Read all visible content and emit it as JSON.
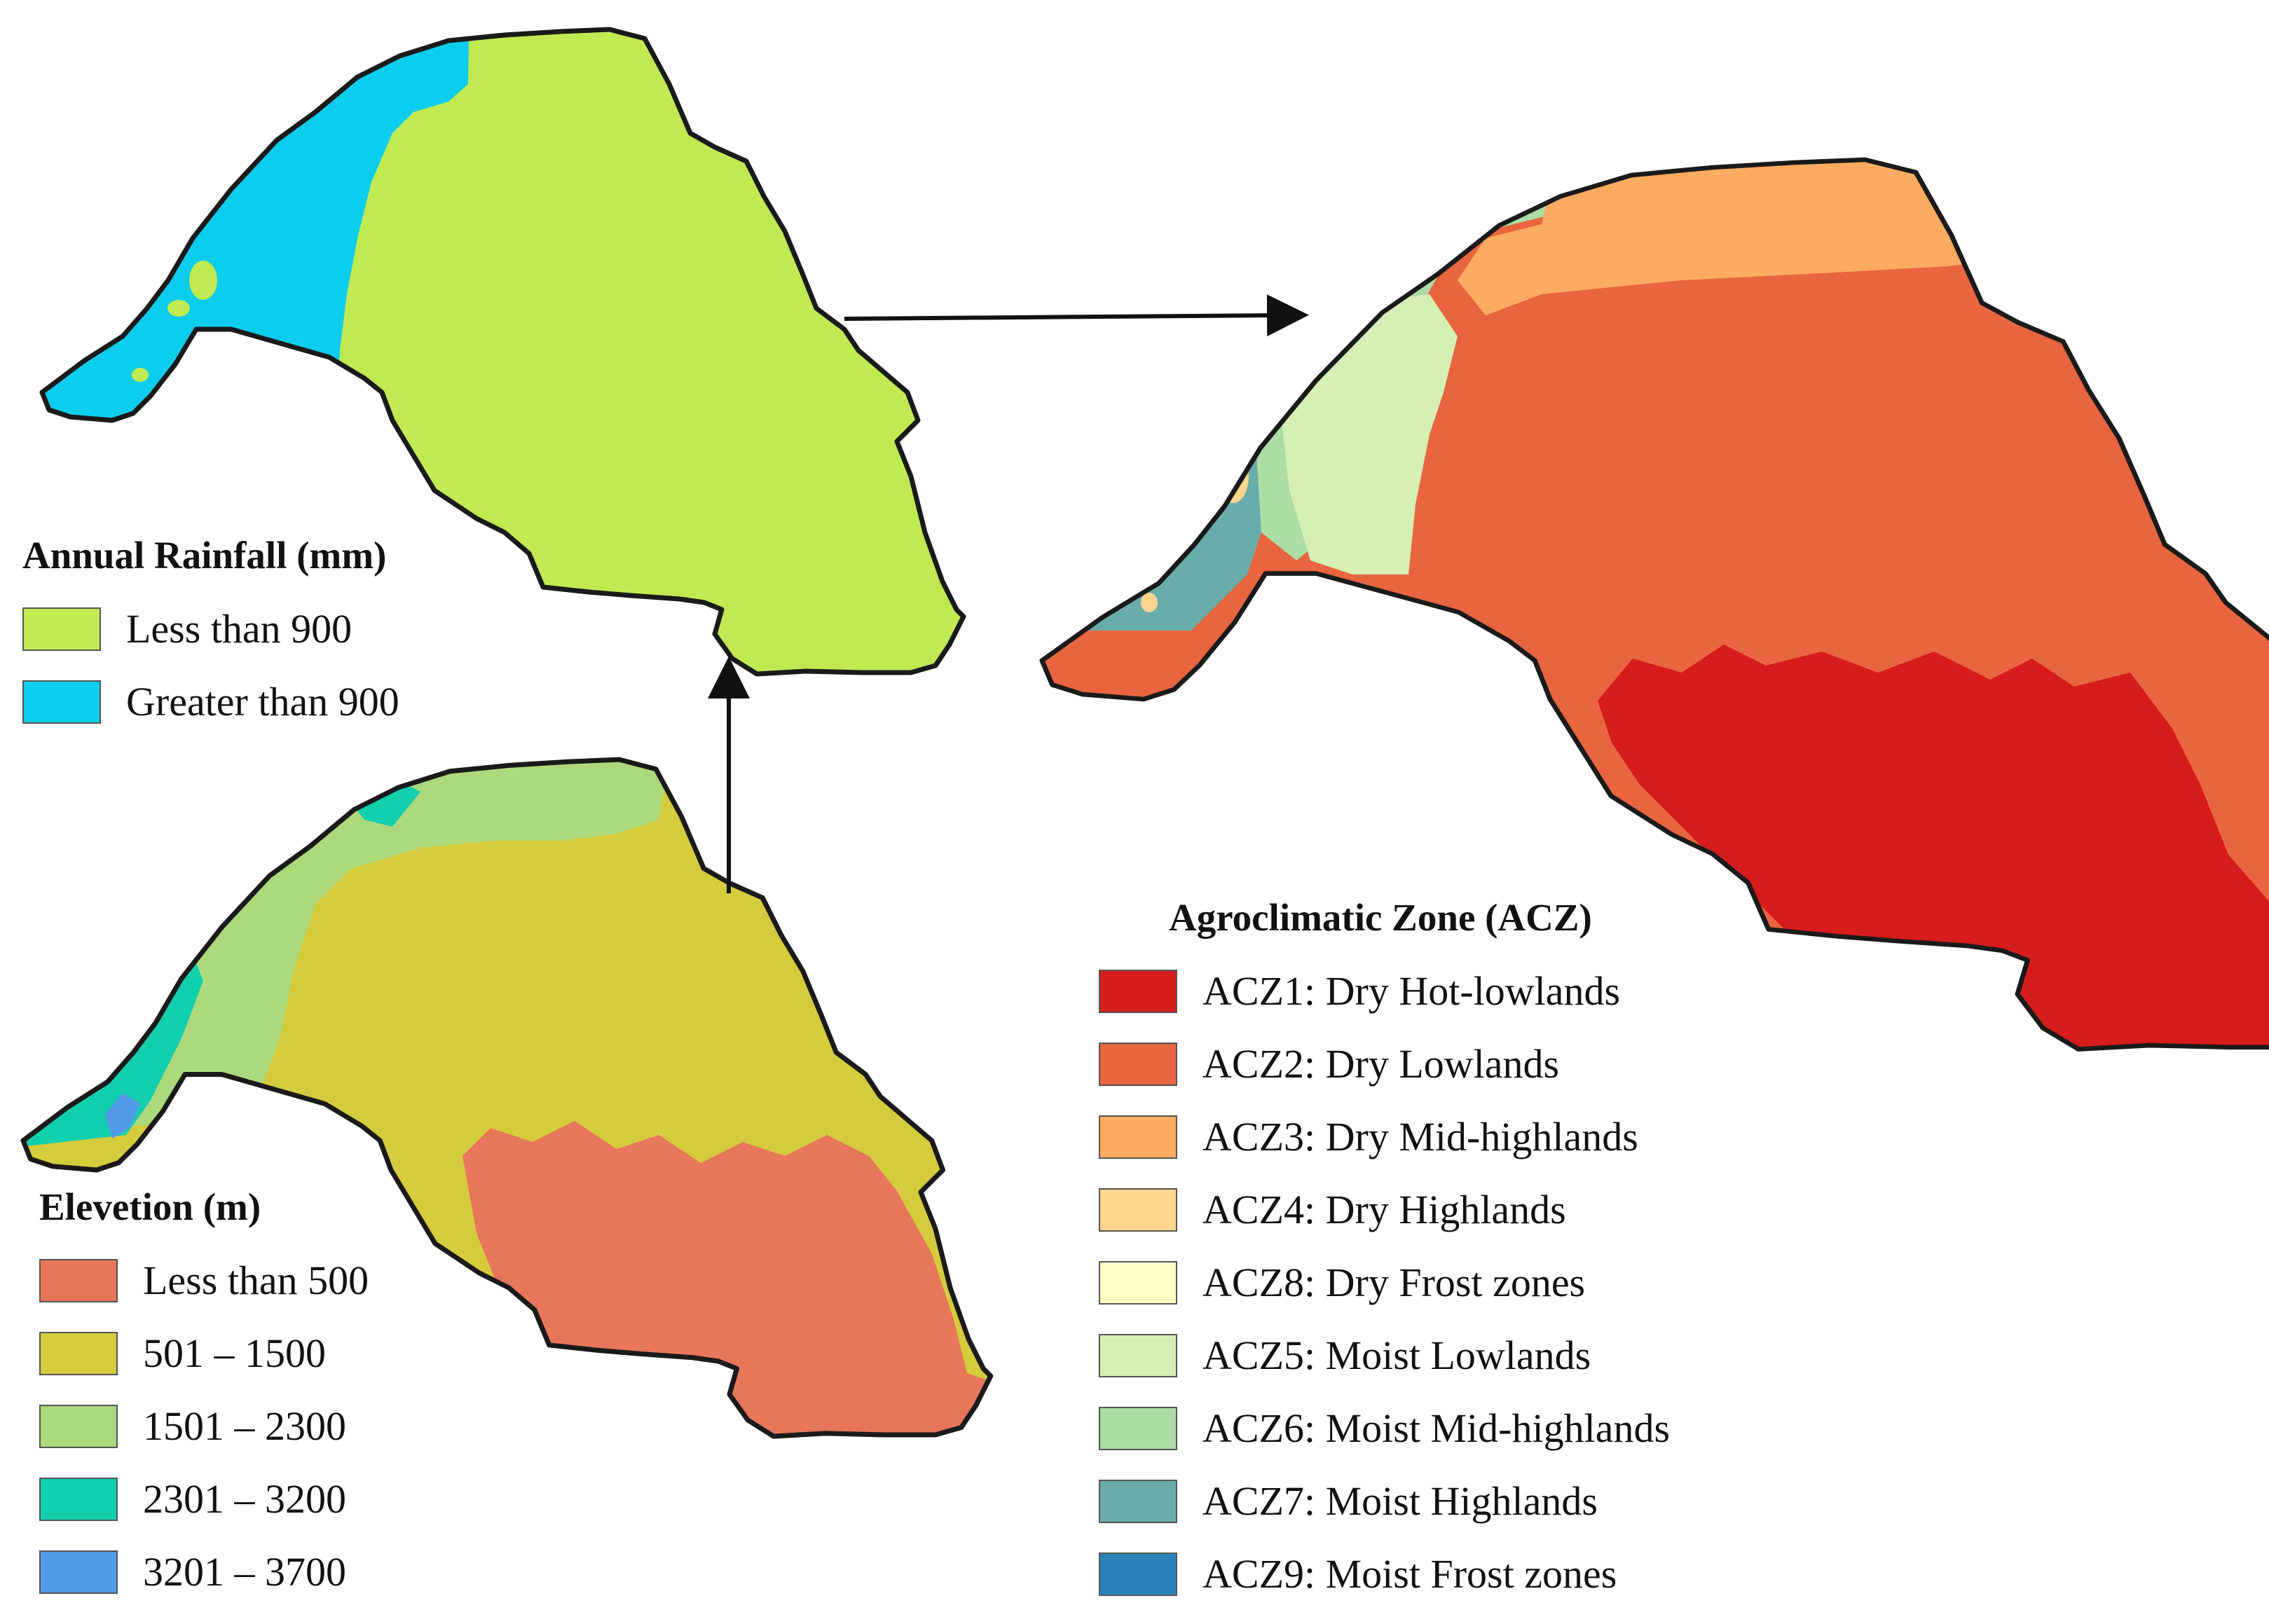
{
  "rainfall_legend": {
    "title": "Annual Rainfall (mm)",
    "items": [
      {
        "label": "Less than 900",
        "color": "#c0ea52"
      },
      {
        "label": "Greater than 900",
        "color": "#0ccdee"
      }
    ]
  },
  "elevation_legend": {
    "title": "Elevetion (m)",
    "items": [
      {
        "label": "Less than 500",
        "color": "#e8765a"
      },
      {
        "label": "501 – 1500",
        "color": "#d4cc3c"
      },
      {
        "label": "1501 – 2300",
        "color": "#acd97c"
      },
      {
        "label": "2301 – 3200",
        "color": "#12cfae"
      },
      {
        "label": "3201 – 3700",
        "color": "#559ae6"
      }
    ]
  },
  "acz_legend": {
    "title": "Agroclimatic Zone (ACZ)",
    "items": [
      {
        "label": "ACZ1: Dry Hot-lowlands",
        "color": "#d61c1c"
      },
      {
        "label": "ACZ2: Dry Lowlands",
        "color": "#e8653f"
      },
      {
        "label": "ACZ3: Dry Mid-highlands",
        "color": "#fcab60"
      },
      {
        "label": "ACZ4: Dry Highlands",
        "color": "#fdd58f"
      },
      {
        "label": "ACZ8: Dry Frost zones",
        "color": "#ffffc4"
      },
      {
        "label": "ACZ5: Moist Lowlands",
        "color": "#d5efb5"
      },
      {
        "label": "ACZ6: Moist Mid-highlands",
        "color": "#abdda5"
      },
      {
        "label": "ACZ7: Moist Highlands",
        "color": "#69adab"
      },
      {
        "label": "ACZ9: Moist Frost zones",
        "color": "#2b82ba"
      }
    ]
  }
}
